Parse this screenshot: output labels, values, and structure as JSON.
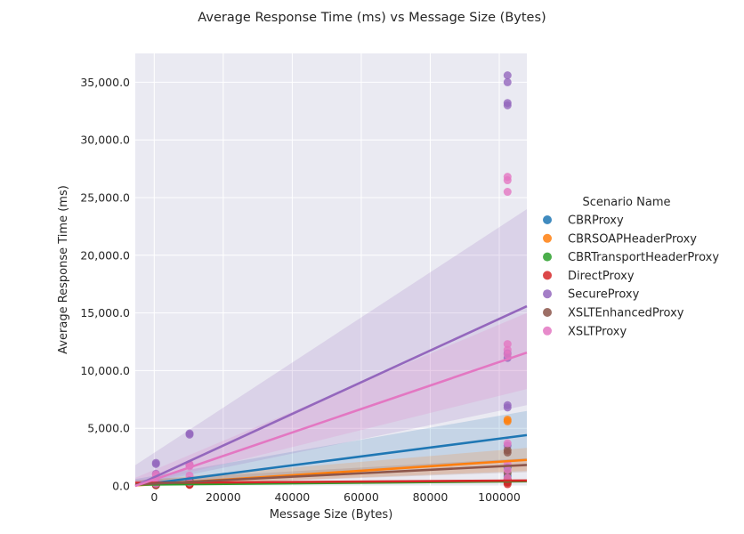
{
  "chart_data": {
    "type": "scatter",
    "title": "Average Response Time (ms) vs Message Size (Bytes)",
    "xlabel": "Message Size (Bytes)",
    "ylabel": "Average Response Time (ms)",
    "xlim": [
      -5500,
      108000
    ],
    "ylim": [
      0,
      37500
    ],
    "xticks": [
      0,
      20000,
      40000,
      60000,
      80000,
      100000
    ],
    "yticks": [
      0,
      5000,
      10000,
      15000,
      20000,
      25000,
      30000,
      35000
    ],
    "ytick_labels": [
      "0.0",
      "5,000.0",
      "10,000.0",
      "15,000.0",
      "20,000.0",
      "25,000.0",
      "30,000.0",
      "35,000.0"
    ],
    "grid": true,
    "legend_title": "Scenario Name",
    "legend_position": "right",
    "series": [
      {
        "name": "CBRProxy",
        "color": "#1f77b4",
        "points": [
          [
            500,
            80
          ],
          [
            500,
            150
          ],
          [
            500,
            260
          ],
          [
            10240,
            200
          ],
          [
            10240,
            380
          ],
          [
            102400,
            400
          ],
          [
            102400,
            850
          ],
          [
            102400,
            1600
          ]
        ],
        "fit": {
          "intercept": 250,
          "slope": 0.0385
        },
        "ci": {
          "lo_left": -300,
          "hi_left": 600,
          "lo_right": 2300,
          "hi_right": 6500
        }
      },
      {
        "name": "CBRSOAPHeaderProxy",
        "color": "#ff7f0e",
        "points": [
          [
            500,
            80
          ],
          [
            500,
            120
          ],
          [
            10240,
            150
          ],
          [
            10240,
            260
          ],
          [
            102400,
            450
          ],
          [
            102400,
            5600
          ],
          [
            102400,
            5750
          ]
        ],
        "fit": {
          "intercept": 150,
          "slope": 0.0195
        },
        "ci": {
          "lo_left": -150,
          "hi_left": 450,
          "lo_right": 1300,
          "hi_right": 3300
        }
      },
      {
        "name": "CBRTransportHeaderProxy",
        "color": "#2ca02c",
        "points": [
          [
            500,
            70
          ],
          [
            500,
            110
          ],
          [
            10240,
            130
          ],
          [
            102400,
            300
          ],
          [
            102400,
            380
          ]
        ],
        "fit": {
          "intercept": 120,
          "slope": 0.0027
        },
        "ci": {
          "lo_left": 60,
          "hi_left": 180,
          "lo_right": 300,
          "hi_right": 520
        }
      },
      {
        "name": "DirectProxy",
        "color": "#d62728",
        "points": [
          [
            500,
            60
          ],
          [
            500,
            100
          ],
          [
            10240,
            90
          ],
          [
            10240,
            140
          ],
          [
            102400,
            150
          ],
          [
            102400,
            300
          ],
          [
            102400,
            500
          ]
        ],
        "fit": {
          "intercept": 270,
          "slope": 0.0018
        },
        "ci": {
          "lo_left": 230,
          "hi_left": 310,
          "lo_right": 390,
          "hi_right": 560
        }
      },
      {
        "name": "SecureProxy",
        "color": "#9467bd",
        "points": [
          [
            500,
            1050
          ],
          [
            500,
            1900
          ],
          [
            500,
            2000
          ],
          [
            10240,
            4450
          ],
          [
            10240,
            4550
          ],
          [
            10240,
            1800
          ],
          [
            102400,
            35600
          ],
          [
            102400,
            35000
          ],
          [
            102400,
            33200
          ],
          [
            102400,
            33000
          ],
          [
            102400,
            11500
          ],
          [
            102400,
            11100
          ],
          [
            102400,
            7000
          ],
          [
            102400,
            6800
          ],
          [
            102400,
            3500
          ]
        ],
        "fit": {
          "intercept": 680,
          "slope": 0.138
        },
        "ci": {
          "lo_left": -600,
          "hi_left": 1800,
          "lo_right": 7000,
          "hi_right": 24000
        }
      },
      {
        "name": "XSLTEnhancedProxy",
        "color": "#8c564b",
        "points": [
          [
            500,
            120
          ],
          [
            500,
            250
          ],
          [
            10240,
            400
          ],
          [
            10240,
            500
          ],
          [
            102400,
            600
          ],
          [
            102400,
            1100
          ],
          [
            102400,
            2900
          ],
          [
            102400,
            3100
          ]
        ],
        "fit": {
          "intercept": 200,
          "slope": 0.015
        },
        "ci": {
          "lo_left": -100,
          "hi_left": 500,
          "lo_right": 1200,
          "hi_right": 2400
        }
      },
      {
        "name": "XSLTProxy",
        "color": "#e377c2",
        "points": [
          [
            500,
            200
          ],
          [
            500,
            500
          ],
          [
            500,
            800
          ],
          [
            500,
            1000
          ],
          [
            10240,
            300
          ],
          [
            10240,
            900
          ],
          [
            10240,
            1700
          ],
          [
            10240,
            1900
          ],
          [
            102400,
            26800
          ],
          [
            102400,
            26500
          ],
          [
            102400,
            25500
          ],
          [
            102400,
            12300
          ],
          [
            102400,
            11800
          ],
          [
            102400,
            11400
          ],
          [
            102400,
            3700
          ],
          [
            102400,
            1900
          ],
          [
            102400,
            1400
          ],
          [
            102400,
            700
          ]
        ],
        "fit": {
          "intercept": -50,
          "slope": 0.1075
        },
        "ci": {
          "lo_left": -800,
          "hi_left": 700,
          "lo_right": 8400,
          "hi_right": 15000
        }
      }
    ]
  }
}
